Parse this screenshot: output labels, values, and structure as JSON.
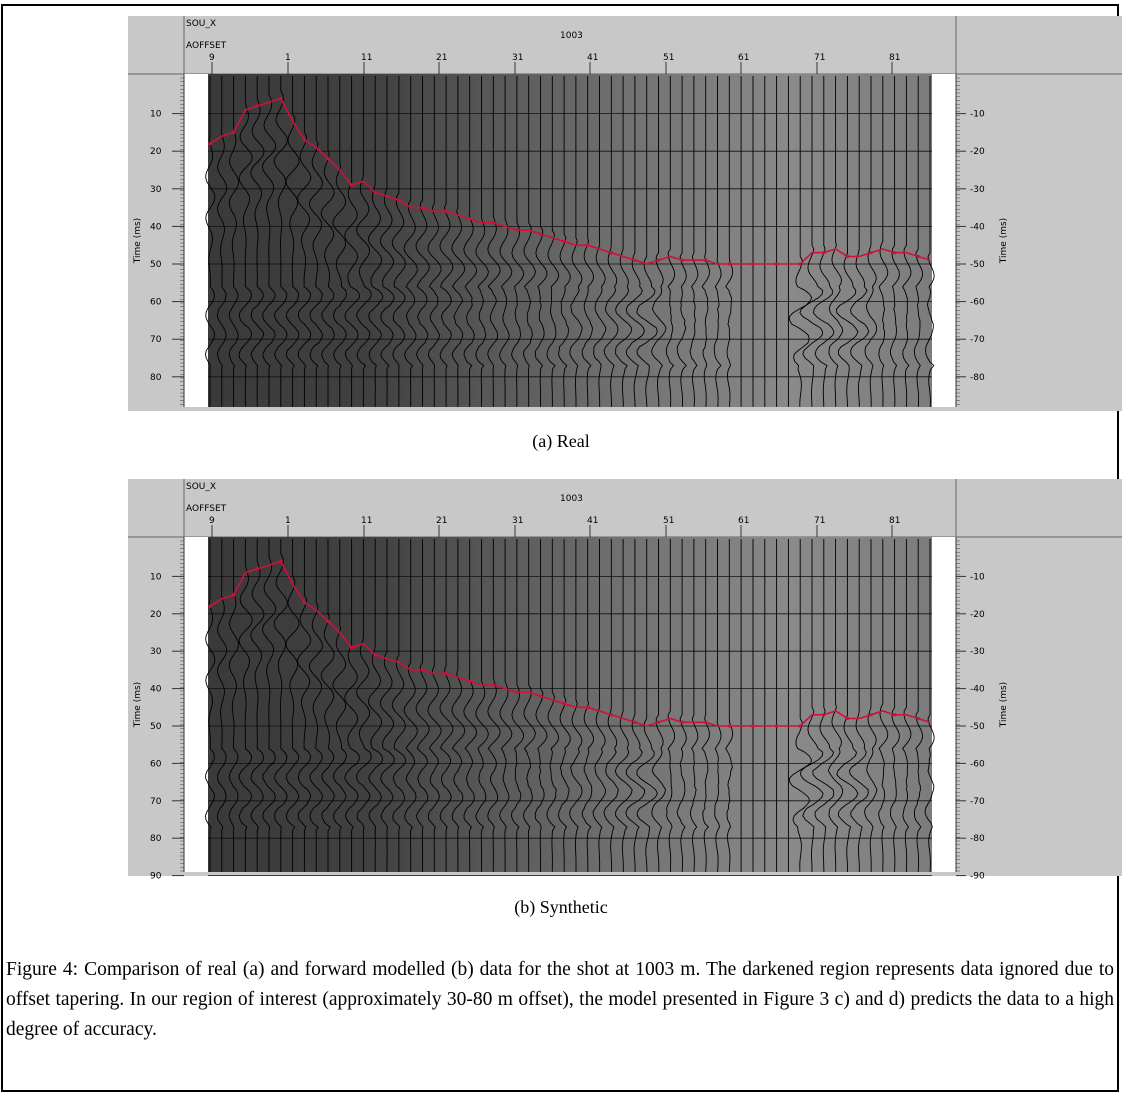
{
  "panel_header": {
    "row1_label": "SOU_X",
    "row1_value": "1003",
    "row2_label": "AOFFSET",
    "offset_ticks": [
      "9",
      "1",
      "11",
      "21",
      "31",
      "41",
      "51",
      "61",
      "71",
      "81"
    ]
  },
  "axis": {
    "ylabel": "Time (ms)",
    "time_ticks_a": [
      "10",
      "20",
      "30",
      "40",
      "50",
      "60",
      "70",
      "80"
    ],
    "time_ticks_b": [
      "10",
      "20",
      "30",
      "40",
      "50",
      "60",
      "70",
      "80",
      "90"
    ]
  },
  "colors": {
    "pick_line": "#d0103a",
    "panel_bg": "#c8c8c8",
    "data_dark": "#3a3a3a",
    "data_light": "#8a8a8a"
  },
  "captions": {
    "a": "(a)  Real",
    "b": "(b)  Synthetic",
    "figure": "Figure 4: Comparison of real (a) and forward modelled (b) data for the shot at 1003 m. The darkened region represents data ignored due to offset tapering. In our region of interest (approximately 30-80 m offset), the model presented in Figure 3 c) and d) predicts the data to a high degree of accuracy."
  },
  "pick_curve_ms": [
    18,
    16,
    15,
    9,
    8,
    7,
    6,
    12,
    17,
    19,
    22,
    25,
    29,
    28,
    31,
    32,
    33,
    35,
    35,
    36,
    36,
    37,
    38,
    39,
    39,
    40,
    41,
    41,
    42,
    43,
    44,
    45,
    45,
    46,
    47,
    48,
    49,
    50,
    49,
    48,
    49,
    49,
    49,
    50,
    50,
    50,
    50,
    50,
    50,
    50,
    50,
    47,
    47,
    46,
    48,
    48,
    47,
    46,
    47,
    47,
    48,
    49
  ]
}
